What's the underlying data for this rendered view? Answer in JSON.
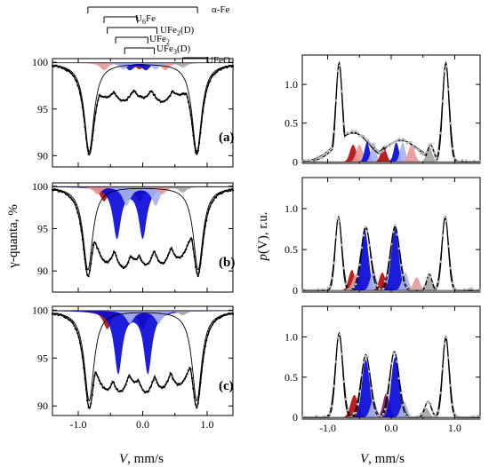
{
  "chart_data": [
    {
      "type": "line",
      "panel": "(a)",
      "xlim": [
        -1.4,
        1.4
      ],
      "ylim": [
        88.8,
        100.4
      ],
      "yticks": [
        90,
        95,
        100
      ],
      "xticks": [
        -1.0,
        0.0,
        1.0
      ],
      "xlabel": "",
      "ylabel": "",
      "label": "(a)",
      "baseline": 99.95,
      "main_dips": [
        {
          "v": -0.83,
          "depth": 9.5
        },
        {
          "v": 0.84,
          "depth": 9.5
        }
      ],
      "data_mid": [
        {
          "v": -0.55,
          "value": 96.6
        },
        {
          "v": -0.3,
          "value": 96.0
        },
        {
          "v": 0.0,
          "value": 96.3
        },
        {
          "v": 0.3,
          "value": 95.9
        },
        {
          "v": 0.55,
          "value": 96.8
        }
      ],
      "subspectra": [
        {
          "color": "#e89a9a",
          "positions": [
            -0.6,
            0.35
          ],
          "depth": 0.8
        },
        {
          "color": "#b50f0f",
          "positions": [
            -0.05
          ],
          "depth": 0.7
        },
        {
          "color": "#0a0ad9",
          "positions": [
            -0.2,
            0.05
          ],
          "depth": 0.75
        },
        {
          "color": "#a9b3ee",
          "positions": [
            -0.3,
            0.2
          ],
          "depth": 0.7
        },
        {
          "color": "#a8a8a8",
          "positions": [
            0.62
          ],
          "depth": 0.5
        }
      ]
    },
    {
      "type": "line",
      "panel": "(b)",
      "xlim": [
        -1.4,
        1.4
      ],
      "ylim": [
        87.5,
        100.4
      ],
      "yticks": [
        90,
        95,
        100
      ],
      "xticks": [
        -1.0,
        0.0,
        1.0
      ],
      "xlabel": "",
      "ylabel": "γ-quanta, %",
      "label": "(b)",
      "baseline": 99.95,
      "main_dips": [
        {
          "v": -0.85,
          "depth": 9.8
        },
        {
          "v": 0.86,
          "depth": 9.8
        }
      ],
      "data_mid": [
        {
          "v": -0.55,
          "value": 91.3
        },
        {
          "v": -0.3,
          "value": 90.5
        },
        {
          "v": -0.12,
          "value": 91.4
        },
        {
          "v": 0.05,
          "value": 90.8
        },
        {
          "v": 0.3,
          "value": 91.0
        },
        {
          "v": 0.55,
          "value": 91.8
        }
      ],
      "subspectra": [
        {
          "color": "#b50f0f",
          "positions": [
            -0.6,
            -0.05
          ],
          "depth": 1.7
        },
        {
          "color": "#0a0ad9",
          "positions": [
            -0.4,
            0.0
          ],
          "depth": 6.0
        },
        {
          "color": "#a9b3ee",
          "positions": [
            -0.25,
            0.2
          ],
          "depth": 2.2
        },
        {
          "color": "#e89a9a",
          "positions": [
            -0.7,
            0.3
          ],
          "depth": 0.9
        },
        {
          "color": "#a8a8a8",
          "positions": [
            0.62
          ],
          "depth": 0.7
        }
      ]
    },
    {
      "type": "line",
      "panel": "(c)",
      "xlim": [
        -1.4,
        1.4
      ],
      "ylim": [
        89.0,
        100.4
      ],
      "yticks": [
        90,
        95,
        100
      ],
      "xticks": [
        -1.0,
        0.0,
        1.0
      ],
      "xlabel": "V, mm/s",
      "ylabel": "",
      "label": "(c)",
      "baseline": 99.95,
      "main_dips": [
        {
          "v": -0.83,
          "depth": 9.4
        },
        {
          "v": 0.84,
          "depth": 9.4
        }
      ],
      "data_mid": [
        {
          "v": -0.55,
          "value": 92.0
        },
        {
          "v": -0.35,
          "value": 91.6
        },
        {
          "v": -0.12,
          "value": 92.6
        },
        {
          "v": 0.05,
          "value": 91.5
        },
        {
          "v": 0.3,
          "value": 92.0
        },
        {
          "v": 0.55,
          "value": 92.5
        }
      ],
      "subspectra": [
        {
          "color": "#b50f0f",
          "positions": [
            -0.55,
            0.0
          ],
          "depth": 1.9
        },
        {
          "color": "#0a0ad9",
          "positions": [
            -0.38,
            0.08
          ],
          "depth": 6.5
        },
        {
          "color": "#a9b3ee",
          "positions": [
            -0.2,
            0.25
          ],
          "depth": 1.3
        },
        {
          "color": "#a8a8a8",
          "positions": [
            0.62
          ],
          "depth": 0.5
        }
      ]
    },
    {
      "type": "area",
      "panel": "distribution-a",
      "xlim": [
        -1.4,
        1.4
      ],
      "ylim": [
        -0.02,
        1.38
      ],
      "yticks": [
        0,
        0.5,
        1.0
      ],
      "ytick_labels": [
        "0",
        "0.5",
        "1.0"
      ],
      "xticks": [
        -1.0,
        0.0,
        1.0
      ],
      "xlabel": "",
      "ylabel": "",
      "envelope": [
        {
          "v": -0.82,
          "height": 1.28,
          "width": 0.05
        },
        {
          "v": -0.6,
          "height": 0.38,
          "width": 0.25
        },
        {
          "v": 0.15,
          "height": 0.28,
          "width": 0.25
        },
        {
          "v": 0.62,
          "height": 0.22,
          "width": 0.05
        },
        {
          "v": 0.86,
          "height": 1.28,
          "width": 0.05
        }
      ],
      "components": [
        {
          "color": "#b50f0f",
          "v": -0.6,
          "height": 0.22,
          "width": 0.05
        },
        {
          "color": "#e89a9a",
          "v": -0.5,
          "height": 0.22,
          "width": 0.05
        },
        {
          "color": "#0a0ad9",
          "v": -0.38,
          "height": 0.25,
          "width": 0.04
        },
        {
          "color": "#a9b3ee",
          "v": -0.28,
          "height": 0.25,
          "width": 0.04
        },
        {
          "color": "#b50f0f",
          "v": -0.12,
          "height": 0.2,
          "width": 0.045
        },
        {
          "color": "#0a0ad9",
          "v": 0.08,
          "height": 0.25,
          "width": 0.04
        },
        {
          "color": "#a9b3ee",
          "v": 0.18,
          "height": 0.25,
          "width": 0.04
        },
        {
          "color": "#e89a9a",
          "v": 0.32,
          "height": 0.22,
          "width": 0.05
        },
        {
          "color": "#a8a8a8",
          "v": 0.6,
          "height": 0.2,
          "width": 0.045
        }
      ]
    },
    {
      "type": "area",
      "panel": "distribution-b",
      "xlim": [
        -1.4,
        1.4
      ],
      "ylim": [
        -0.02,
        1.38
      ],
      "yticks": [
        0,
        0.5,
        1.0
      ],
      "ytick_labels": [
        "0",
        "0.5",
        "1.0"
      ],
      "xticks": [
        -1.0,
        0.0,
        1.0
      ],
      "xlabel": "",
      "ylabel": "p(V), r.u.",
      "envelope": [
        {
          "v": -0.83,
          "height": 0.9,
          "width": 0.05
        },
        {
          "v": -0.4,
          "height": 0.78,
          "width": 0.07
        },
        {
          "v": 0.06,
          "height": 0.78,
          "width": 0.07
        },
        {
          "v": 0.6,
          "height": 0.2,
          "width": 0.04
        },
        {
          "v": 0.85,
          "height": 0.9,
          "width": 0.05
        }
      ],
      "components": [
        {
          "color": "#b50f0f",
          "v": -0.62,
          "height": 0.25,
          "width": 0.05
        },
        {
          "color": "#e89a9a",
          "v": -0.55,
          "height": 0.2,
          "width": 0.06
        },
        {
          "color": "#0a0ad9",
          "v": -0.42,
          "height": 0.75,
          "width": 0.06
        },
        {
          "color": "#a9b3ee",
          "v": -0.28,
          "height": 0.24,
          "width": 0.05
        },
        {
          "color": "#b50f0f",
          "v": -0.14,
          "height": 0.22,
          "width": 0.05
        },
        {
          "color": "#0a0ad9",
          "v": 0.06,
          "height": 0.75,
          "width": 0.06
        },
        {
          "color": "#a9b3ee",
          "v": 0.22,
          "height": 0.22,
          "width": 0.05
        },
        {
          "color": "#e89a9a",
          "v": 0.4,
          "height": 0.16,
          "width": 0.05
        },
        {
          "color": "#a8a8a8",
          "v": 0.6,
          "height": 0.17,
          "width": 0.04
        }
      ]
    },
    {
      "type": "area",
      "panel": "distribution-c",
      "xlim": [
        -1.4,
        1.4
      ],
      "ylim": [
        -0.02,
        1.38
      ],
      "yticks": [
        0,
        0.5,
        1.0
      ],
      "ytick_labels": [
        "0",
        "0.5",
        "1.0"
      ],
      "xticks": [
        -1.0,
        0.0,
        1.0
      ],
      "xlabel": "V, mm/s",
      "ylabel": "",
      "envelope": [
        {
          "v": -0.82,
          "height": 1.05,
          "width": 0.055
        },
        {
          "v": -0.4,
          "height": 0.78,
          "width": 0.07
        },
        {
          "v": 0.05,
          "height": 0.82,
          "width": 0.07
        },
        {
          "v": 0.58,
          "height": 0.2,
          "width": 0.05
        },
        {
          "v": 0.86,
          "height": 1.0,
          "width": 0.05
        }
      ],
      "components": [
        {
          "color": "#b50f0f",
          "v": -0.58,
          "height": 0.28,
          "width": 0.06
        },
        {
          "color": "#0a0ad9",
          "v": -0.4,
          "height": 0.72,
          "width": 0.06
        },
        {
          "color": "#a9b3ee",
          "v": -0.28,
          "height": 0.22,
          "width": 0.05
        },
        {
          "color": "#7f1a6e",
          "v": -0.08,
          "height": 0.3,
          "width": 0.05
        },
        {
          "color": "#0a0ad9",
          "v": 0.06,
          "height": 0.75,
          "width": 0.06
        },
        {
          "color": "#a9b3ee",
          "v": 0.2,
          "height": 0.2,
          "width": 0.05
        },
        {
          "color": "#a8a8a8",
          "v": 0.55,
          "height": 0.12,
          "width": 0.05
        }
      ]
    }
  ],
  "stick_diagram": [
    {
      "label": "α-Fe",
      "positions": [
        -0.85,
        0.85
      ]
    },
    {
      "label": "U6Fe",
      "positions": [
        -0.6,
        -0.08
      ]
    },
    {
      "label": "UFe2(D)",
      "positions": [
        -0.55,
        0.22
      ]
    },
    {
      "label": "UFe2",
      "positions": [
        -0.42,
        0.08
      ]
    },
    {
      "label": "UFe3(D)",
      "positions": [
        -0.28,
        0.18
      ]
    },
    {
      "label": "UFeO",
      "positions": [
        0.62
      ]
    }
  ],
  "stick_labels": {
    "afe": "α-Fe",
    "u6fe_base": "U",
    "u6fe_sub": "6",
    "u6fe_tail": "Fe",
    "ufe2d_base": "UFe",
    "ufe2d_sub": "2",
    "ufe2d_tail": "(D)",
    "ufe2_base": "UFe",
    "ufe2_sub": "2",
    "ufe3d_base": "UFe",
    "ufe3d_sub": "3",
    "ufe3d_tail": "(D)",
    "ufeo": "UFeO"
  },
  "axis_labels": {
    "left_y": "γ-quanta, %",
    "right_y_italic": "p",
    "right_y_rest": "(V), r.u.",
    "x_italic": "V",
    "x_rest": ", mm/s"
  },
  "panel_labels": [
    "(a)",
    "(b)",
    "(c)"
  ]
}
